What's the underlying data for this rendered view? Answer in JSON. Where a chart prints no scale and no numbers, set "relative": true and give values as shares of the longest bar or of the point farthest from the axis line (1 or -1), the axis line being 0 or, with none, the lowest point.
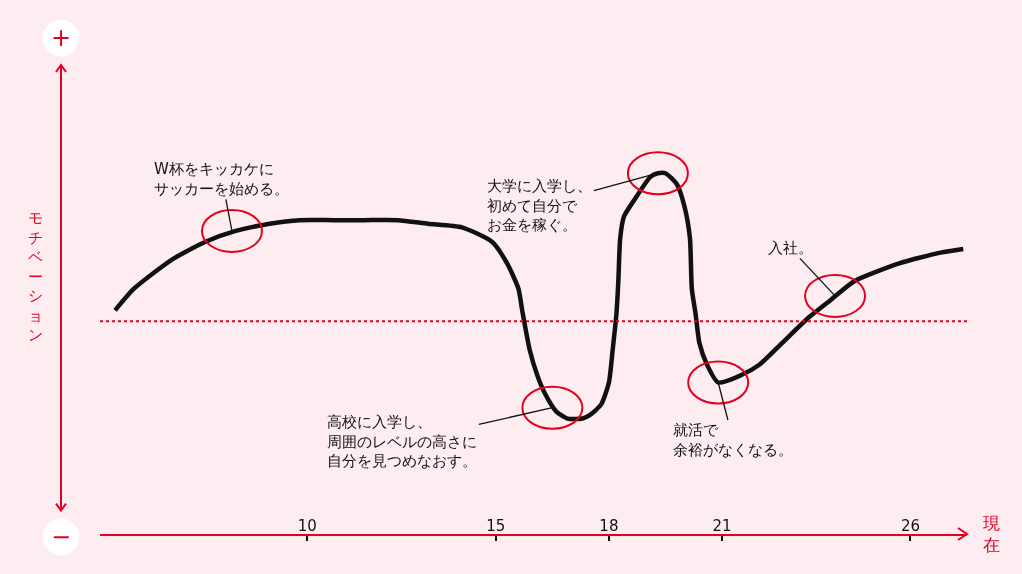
{
  "chart_data": {
    "type": "line",
    "relative": true,
    "x": [
      4.9,
      5.4,
      6.4,
      7.3,
      8.1,
      9.0,
      9.8,
      10.7,
      11.5,
      12.4,
      13.2,
      14.1,
      14.9,
      15.3,
      15.6,
      15.7,
      15.9,
      16.1,
      16.3,
      16.6,
      16.9,
      17.3,
      17.5,
      17.8,
      18.0,
      18.1,
      18.2,
      18.25,
      18.3,
      18.4,
      18.7,
      19.1,
      19.3,
      19.5,
      19.8,
      20.0,
      20.15,
      20.2,
      20.3,
      20.4,
      20.6,
      20.9,
      21.5,
      22.0,
      22.6,
      23.3,
      23.9,
      24.5,
      25.7,
      26.8,
      27.4
    ],
    "series": [
      {
        "color": "#111111",
        "values": [
          0.62,
          0.68,
          0.76,
          0.81,
          0.84,
          0.86,
          0.87,
          0.87,
          0.87,
          0.87,
          0.86,
          0.85,
          0.81,
          0.75,
          0.68,
          0.62,
          0.51,
          0.44,
          0.39,
          0.34,
          0.32,
          0.32,
          0.33,
          0.36,
          0.42,
          0.51,
          0.61,
          0.7,
          0.82,
          0.88,
          0.93,
          0.99,
          1.0,
          1.0,
          0.97,
          0.91,
          0.82,
          0.68,
          0.61,
          0.53,
          0.47,
          0.42,
          0.44,
          0.47,
          0.53,
          0.6,
          0.65,
          0.7,
          0.75,
          0.78,
          0.79
        ]
      }
    ],
    "xlim": [
      4.5,
      27.5
    ],
    "xticks": [
      10,
      15,
      18,
      21,
      26
    ],
    "xlabel": "現在",
    "ylabel": "モチベーション",
    "line_style": "solid",
    "ref_lines": [
      {
        "axis": "y",
        "value": 0.59,
        "color": "#e60020",
        "line_style": "dotted"
      }
    ],
    "annotations": [
      "+",
      "−",
      {
        "text": "W杯をキッカケにサッカーを始める。",
        "x": 8.0,
        "y": 0.84
      },
      {
        "text": "高校に入学し、周囲のレベルの高さに自分を見つめなおす。",
        "x": 16.5,
        "y": 0.35
      },
      {
        "text": "大学に入学し、初めて自分でお金を稼ぐ。",
        "x": 19.3,
        "y": 1.0
      },
      {
        "text": "就活で余裕がなくなる。",
        "x": 20.9,
        "y": 0.42
      },
      {
        "text": "入社。",
        "x": 24.0,
        "y": 0.66
      }
    ]
  }
}
